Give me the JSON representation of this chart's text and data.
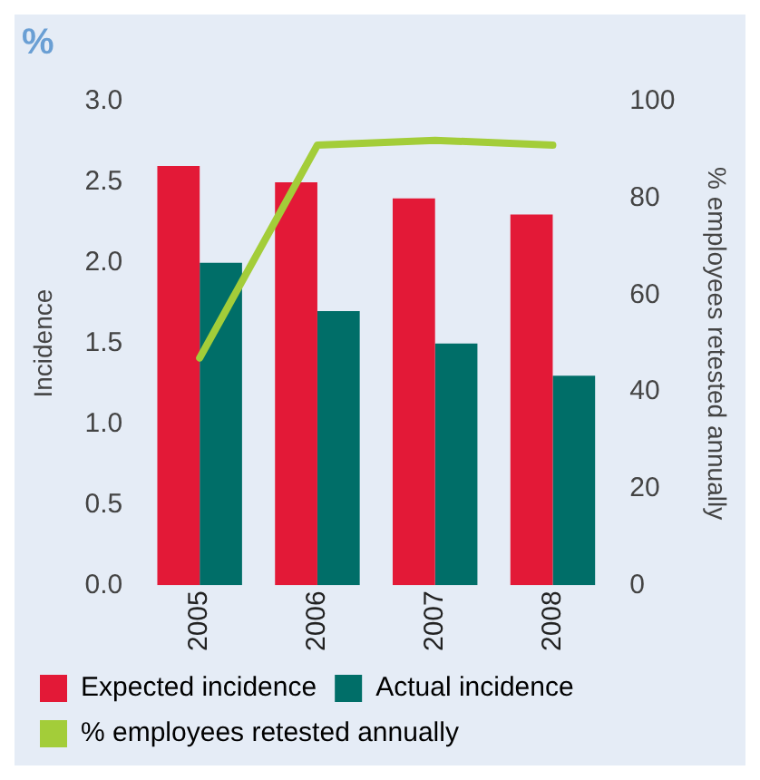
{
  "chart_data": {
    "type": "bar",
    "title": "%",
    "ylabel": "Incidence",
    "y2label": "% employees retested annually",
    "categories": [
      "2005",
      "2006",
      "2007",
      "2008"
    ],
    "series": [
      {
        "name": "Expected incidence",
        "color": "#e31937",
        "values": [
          2.6,
          2.5,
          2.4,
          2.3
        ]
      },
      {
        "name": "Actual incidence",
        "color": "#006e68",
        "values": [
          2.0,
          1.7,
          1.5,
          1.3
        ]
      },
      {
        "name": "% employees retested annually",
        "color": "#a3cd39",
        "type": "line",
        "axis": "y2",
        "values": [
          47,
          91,
          92,
          91
        ]
      }
    ],
    "ylim": [
      0,
      3
    ],
    "yticks": [
      {
        "value": 0,
        "label": "0.0"
      },
      0.5,
      {
        "value": 1,
        "label": "1.0"
      },
      1.5,
      {
        "value": 2,
        "label": "2.0"
      },
      2.5,
      {
        "value": 3,
        "label": "3.0"
      }
    ],
    "y2lim": [
      0,
      100
    ],
    "y2ticks": [
      0,
      20,
      40,
      60,
      80,
      100
    ],
    "grid": false,
    "legend": "bottom",
    "marker": "none",
    "line_style": "solid"
  }
}
